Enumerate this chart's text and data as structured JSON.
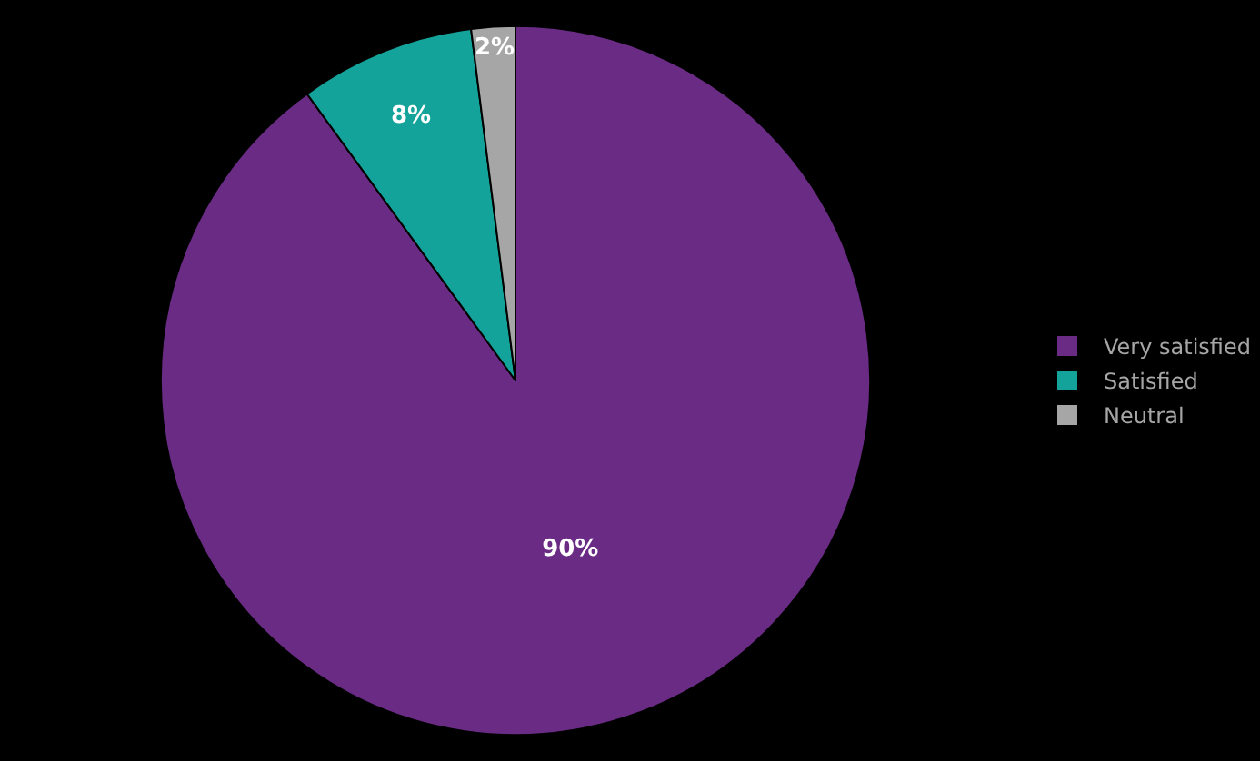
{
  "chart_data": {
    "type": "pie",
    "categories": [
      "Very satisfied",
      "Satisfied",
      "Neutral"
    ],
    "values": [
      90,
      8,
      2
    ],
    "colors": [
      "#692b84",
      "#14a39a",
      "#a6a6a6"
    ],
    "value_labels": [
      "90%",
      "8%",
      "2%"
    ],
    "legend": "right"
  }
}
